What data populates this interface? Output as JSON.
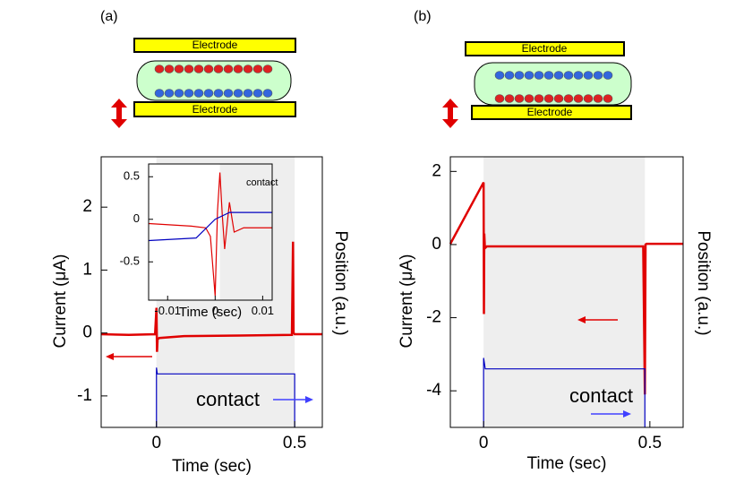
{
  "figure": {
    "panels": [
      {
        "label": "(a)",
        "electrodes": [
          "Electrode",
          "Electrode"
        ]
      },
      {
        "label": "(b)",
        "electrodes": [
          "Electrode",
          "Electrode"
        ]
      }
    ]
  },
  "chart_data": [
    {
      "type": "line",
      "xlabel": "Time (sec)",
      "ylabel": "Current (μA)",
      "y2label": "Position (a.u.)",
      "annotation": "contact",
      "xlim": [
        -0.2,
        0.6
      ],
      "ylim": [
        -1.5,
        2.8
      ],
      "y2lim": [
        -1.5,
        2.8
      ],
      "xticks": [
        0,
        0.5
      ],
      "yticks": [
        -1,
        0,
        1,
        2
      ],
      "shaded_region": [
        0,
        0.5
      ],
      "series": [
        {
          "color": "#e00000",
          "x": [
            -0.2,
            -0.1,
            -0.005,
            0,
            0.002,
            0.004,
            0.01,
            0.1,
            0.3,
            0.49,
            0.494,
            0.496,
            0.5,
            0.6
          ],
          "values": [
            -0.02,
            -0.03,
            -0.02,
            0.4,
            -0.3,
            -0.1,
            -0.08,
            -0.05,
            -0.04,
            -0.03,
            1.45,
            0,
            -0.02,
            -0.02
          ]
        },
        {
          "color": "#0000c0",
          "axis": "y2",
          "x": [
            0,
            0,
            0.003,
            0.5,
            0.5
          ],
          "values": [
            -1.5,
            -0.55,
            -0.65,
            -0.65,
            -1.5
          ]
        }
      ]
    },
    {
      "type": "line",
      "xlabel": "Time (sec)",
      "annotation": "contact",
      "xlim": [
        -0.014,
        0.012
      ],
      "ylim": [
        -0.95,
        0.65
      ],
      "xticks": [
        -0.01,
        0,
        0.01
      ],
      "yticks": [
        -0.5,
        0,
        0.5
      ],
      "shaded_region": [
        0.001,
        0.012
      ],
      "series": [
        {
          "color": "#e00000",
          "x": [
            -0.014,
            -0.005,
            -0.002,
            -0.001,
            0,
            0.0005,
            0.001,
            0.0015,
            0.002,
            0.003,
            0.004,
            0.006,
            0.012
          ],
          "values": [
            -0.05,
            -0.08,
            -0.1,
            -0.2,
            -0.9,
            0.1,
            0.55,
            0.05,
            -0.35,
            0.2,
            -0.15,
            -0.1,
            -0.1
          ]
        },
        {
          "color": "#0000c0",
          "x": [
            -0.014,
            -0.004,
            0,
            0.003,
            0.012
          ],
          "values": [
            -0.25,
            -0.22,
            0,
            0.08,
            0.08
          ]
        }
      ]
    },
    {
      "type": "line",
      "xlabel": "Time (sec)",
      "ylabel": "Current (μA)",
      "y2label": "Position (a.u.)",
      "annotation": "contact",
      "xlim": [
        -0.1,
        0.6
      ],
      "ylim": [
        -5,
        2.4
      ],
      "y2lim": [
        -5,
        2.4
      ],
      "xticks": [
        0,
        0.5
      ],
      "yticks": [
        -4,
        -2,
        0,
        2
      ],
      "shaded_region": [
        0,
        0.485
      ],
      "series": [
        {
          "color": "#e00000",
          "x": [
            -0.1,
            0,
            0.001,
            0.002,
            0.004,
            0.01,
            0.2,
            0.48,
            0.485,
            0.487,
            0.49,
            0.6
          ],
          "values": [
            0.02,
            1.7,
            -1.9,
            0.3,
            -0.1,
            -0.05,
            -0.05,
            -0.05,
            -4.1,
            0,
            0.02,
            0.02
          ]
        },
        {
          "color": "#0000c0",
          "axis": "y2",
          "x": [
            0,
            0,
            0.005,
            0.01,
            0.485,
            0.485
          ],
          "values": [
            -5,
            -3.1,
            -3.4,
            -3.4,
            -3.4,
            -5
          ]
        }
      ]
    }
  ]
}
